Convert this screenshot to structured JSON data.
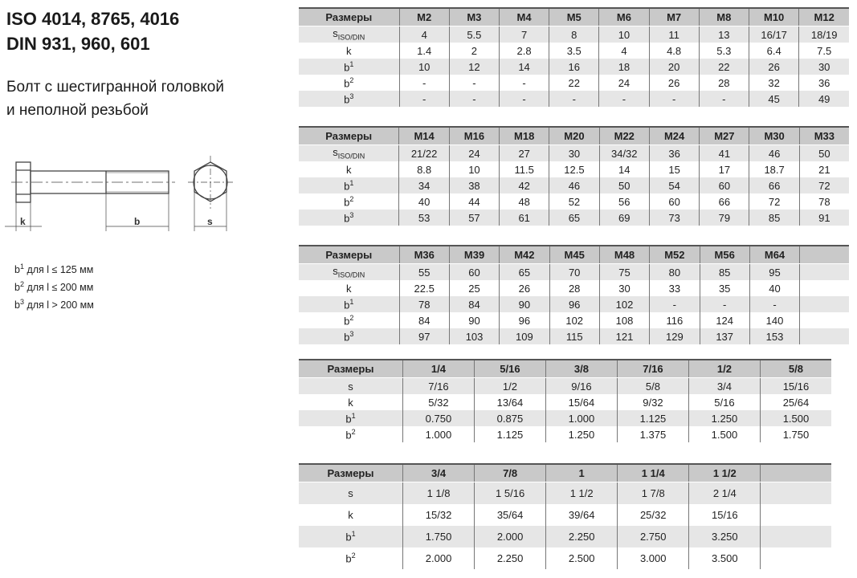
{
  "title": [
    "ISO 4014, 8765, 4016",
    "DIN 931, 960, 601"
  ],
  "subtitle": [
    "Болт с шестигранной головкой",
    "и неполной резьбой"
  ],
  "drawing": {
    "k": "k",
    "b": "b",
    "s": "s"
  },
  "notes": [
    {
      "sym": "b",
      "sup": "1",
      "text": " для l ≤ 125 мм"
    },
    {
      "sym": "b",
      "sup": "2",
      "text": " для l ≤ 200 мм"
    },
    {
      "sym": "b",
      "sup": "3",
      "text": " для l > 200 мм"
    }
  ],
  "row_labels": {
    "s_iso": {
      "base": "s",
      "sub": "ISO/DIN"
    },
    "s": "s",
    "k": "k",
    "b1": {
      "base": "b",
      "sup": "1"
    },
    "b2": {
      "base": "b",
      "sup": "2"
    },
    "b3": {
      "base": "b",
      "sup": "3"
    }
  },
  "tables": [
    {
      "header": "Размеры",
      "cols": [
        "M2",
        "M3",
        "M4",
        "M5",
        "M6",
        "M7",
        "M8",
        "M10",
        "M12"
      ],
      "rows": [
        [
          "s_iso",
          "4",
          "5.5",
          "7",
          "8",
          "10",
          "11",
          "13",
          "16/17",
          "18/19"
        ],
        [
          "k",
          "1.4",
          "2",
          "2.8",
          "3.5",
          "4",
          "4.8",
          "5.3",
          "6.4",
          "7.5"
        ],
        [
          "b1",
          "10",
          "12",
          "14",
          "16",
          "18",
          "20",
          "22",
          "26",
          "30"
        ],
        [
          "b2",
          "-",
          "-",
          "-",
          "22",
          "24",
          "26",
          "28",
          "32",
          "36"
        ],
        [
          "b3",
          "-",
          "-",
          "-",
          "-",
          "-",
          "-",
          "-",
          "45",
          "49"
        ]
      ]
    },
    {
      "header": "Размеры",
      "cols": [
        "M14",
        "M16",
        "M18",
        "M20",
        "M22",
        "M24",
        "M27",
        "M30",
        "M33"
      ],
      "rows": [
        [
          "s_iso",
          "21/22",
          "24",
          "27",
          "30",
          "34/32",
          "36",
          "41",
          "46",
          "50"
        ],
        [
          "k",
          "8.8",
          "10",
          "11.5",
          "12.5",
          "14",
          "15",
          "17",
          "18.7",
          "21"
        ],
        [
          "b1",
          "34",
          "38",
          "42",
          "46",
          "50",
          "54",
          "60",
          "66",
          "72"
        ],
        [
          "b2",
          "40",
          "44",
          "48",
          "52",
          "56",
          "60",
          "66",
          "72",
          "78"
        ],
        [
          "b3",
          "53",
          "57",
          "61",
          "65",
          "69",
          "73",
          "79",
          "85",
          "91"
        ]
      ]
    },
    {
      "header": "Размеры",
      "cols": [
        "M36",
        "M39",
        "M42",
        "M45",
        "M48",
        "M52",
        "M56",
        "M64",
        ""
      ],
      "rows": [
        [
          "s_iso",
          "55",
          "60",
          "65",
          "70",
          "75",
          "80",
          "85",
          "95",
          ""
        ],
        [
          "k",
          "22.5",
          "25",
          "26",
          "28",
          "30",
          "33",
          "35",
          "40",
          ""
        ],
        [
          "b1",
          "78",
          "84",
          "90",
          "96",
          "102",
          "-",
          "-",
          "-",
          ""
        ],
        [
          "b2",
          "84",
          "90",
          "96",
          "102",
          "108",
          "116",
          "124",
          "140",
          ""
        ],
        [
          "b3",
          "97",
          "103",
          "109",
          "115",
          "121",
          "129",
          "137",
          "153",
          ""
        ]
      ]
    },
    {
      "header": "Размеры",
      "cols": [
        "1/4",
        "5/16",
        "3/8",
        "7/16",
        "1/2",
        "5/8"
      ],
      "rows": [
        [
          "s",
          "7/16",
          "1/2",
          "9/16",
          "5/8",
          "3/4",
          "15/16"
        ],
        [
          "k",
          "5/32",
          "13/64",
          "15/64",
          "9/32",
          "5/16",
          "25/64"
        ],
        [
          "b1",
          "0.750",
          "0.875",
          "1.000",
          "1.125",
          "1.250",
          "1.500"
        ],
        [
          "b2",
          "1.000",
          "1.125",
          "1.250",
          "1.375",
          "1.500",
          "1.750"
        ]
      ]
    },
    {
      "header": "Размеры",
      "cols": [
        "3/4",
        "7/8",
        "1",
        "1 1/4",
        "1 1/2",
        ""
      ],
      "rows": [
        [
          "s",
          "1 1/8",
          "1 5/16",
          "1 1/2",
          "1 7/8",
          "2 1/4",
          ""
        ],
        [
          "k",
          "15/32",
          "35/64",
          "39/64",
          "25/32",
          "15/16",
          ""
        ],
        [
          "b1",
          "1.750",
          "2.000",
          "2.250",
          "2.750",
          "3.250",
          ""
        ],
        [
          "b2",
          "2.000",
          "2.250",
          "2.500",
          "3.000",
          "3.500",
          ""
        ]
      ]
    }
  ]
}
